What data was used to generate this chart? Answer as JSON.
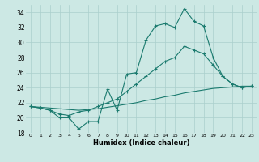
{
  "xlabel": "Humidex (Indice chaleur)",
  "background_color": "#cce8e4",
  "grid_color": "#aacfcc",
  "line_color": "#1a7a6e",
  "xlim": [
    -0.5,
    23.5
  ],
  "ylim": [
    18,
    35
  ],
  "xticks": [
    0,
    1,
    2,
    3,
    4,
    5,
    6,
    7,
    8,
    9,
    10,
    11,
    12,
    13,
    14,
    15,
    16,
    17,
    18,
    19,
    20,
    21,
    22,
    23
  ],
  "yticks": [
    18,
    20,
    22,
    24,
    26,
    28,
    30,
    32,
    34
  ],
  "series1_y": [
    21.5,
    21.3,
    21.0,
    20.0,
    20.0,
    18.5,
    19.5,
    19.5,
    23.8,
    21.0,
    25.8,
    26.0,
    30.3,
    32.2,
    32.5,
    32.0,
    34.5,
    32.8,
    32.2,
    28.0,
    25.5,
    24.5,
    24.0,
    24.2
  ],
  "series2_y": [
    21.5,
    21.3,
    21.0,
    20.5,
    20.3,
    20.8,
    21.0,
    21.5,
    22.0,
    22.5,
    23.5,
    24.5,
    25.5,
    26.5,
    27.5,
    28.0,
    29.5,
    29.0,
    28.5,
    27.0,
    25.5,
    24.5,
    24.0,
    24.2
  ],
  "series3_y": [
    21.5,
    21.4,
    21.3,
    21.2,
    21.1,
    21.0,
    21.1,
    21.2,
    21.4,
    21.6,
    21.8,
    22.0,
    22.3,
    22.5,
    22.8,
    23.0,
    23.3,
    23.5,
    23.7,
    23.9,
    24.0,
    24.1,
    24.2,
    24.2
  ]
}
